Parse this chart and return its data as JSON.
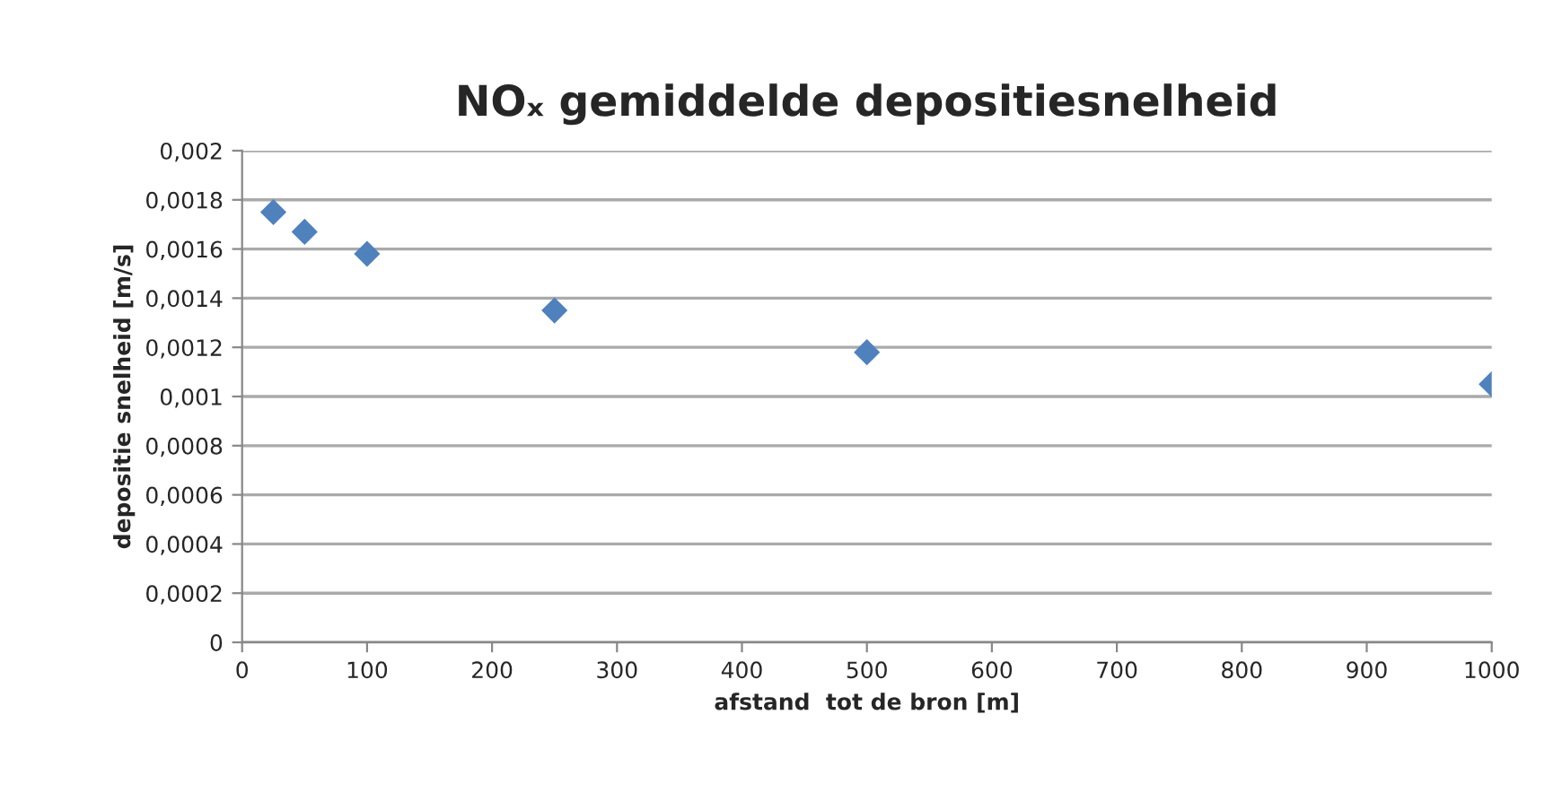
{
  "chart_data": {
    "type": "scatter",
    "title": "NOₓ gemiddelde depositiesnelheid",
    "xlabel": "afstand  tot de bron [m]",
    "ylabel": "depositie snelheid [m/s]",
    "x": [
      25,
      50,
      100,
      250,
      500,
      1000
    ],
    "series": [
      {
        "color": "#4f81bd",
        "values": [
          0.00175,
          0.00167,
          0.00158,
          0.00135,
          0.00118,
          0.00105
        ]
      }
    ],
    "marker": "diamond",
    "grid": "y",
    "xlim": [
      0,
      1000
    ],
    "xticks": [
      0,
      100,
      200,
      300,
      400,
      500,
      600,
      700,
      800,
      900,
      1000
    ],
    "ylim": [
      0,
      0.002
    ],
    "yticks": [
      {
        "value": 0,
        "label": "0"
      },
      {
        "value": 0.0002,
        "label": "0,0002"
      },
      {
        "value": 0.0004,
        "label": "0,0004"
      },
      {
        "value": 0.0006,
        "label": "0,0006"
      },
      {
        "value": 0.0008,
        "label": "0,0008"
      },
      {
        "value": 0.001,
        "label": "0,001"
      },
      {
        "value": 0.0012,
        "label": "0,0012"
      },
      {
        "value": 0.0014,
        "label": "0,0014"
      },
      {
        "value": 0.0016,
        "label": "0,0016"
      },
      {
        "value": 0.0018,
        "label": "0,0018"
      },
      {
        "value": 0.002,
        "label": "0,002"
      }
    ]
  }
}
